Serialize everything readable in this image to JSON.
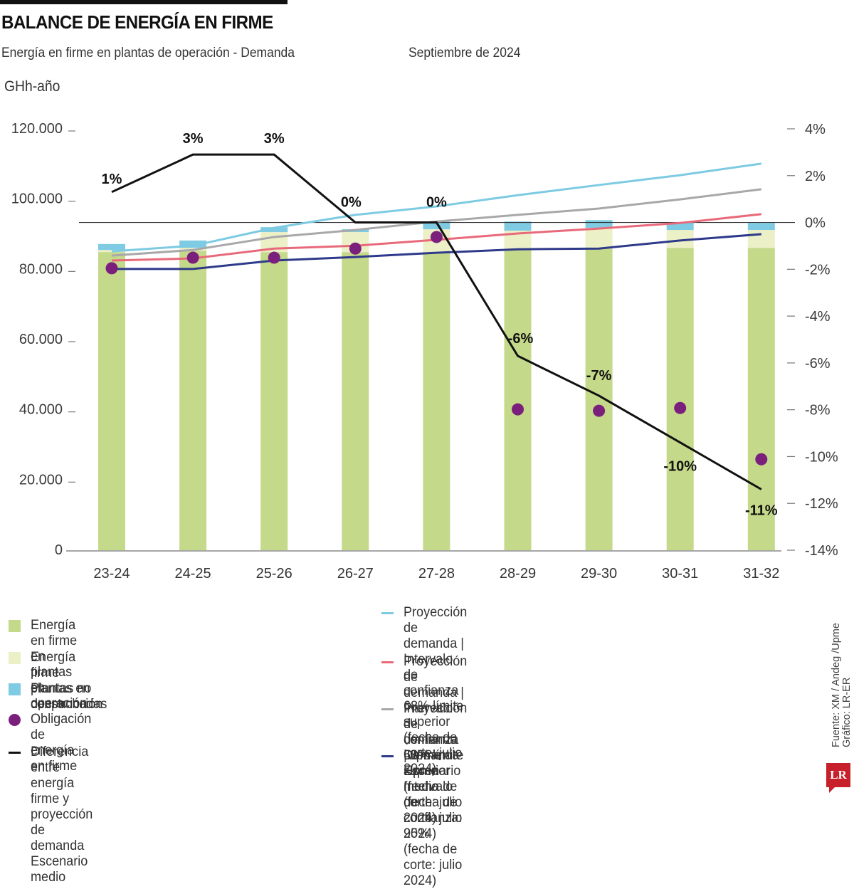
{
  "header": {
    "title": "BALANCE DE ENERGÍA EN FIRME",
    "subtitle": "Energía en firme en plantas de operación - Demanda",
    "date": "Septiembre de 2024",
    "unit": "GHh-año"
  },
  "colors": {
    "operacion": "#c5d98a",
    "construccion": "#ecf0c7",
    "no_despachadas": "#7fcbe3",
    "obligacion": "#7b1f7d",
    "diferencia": "#111111",
    "proy_68_cyan": "#7ccbe2",
    "proy_68_red": "#e8697a",
    "proy_medio": "#a8a8aa",
    "upme_95": "#2e3a8a"
  },
  "chart_data": {
    "type": "bar",
    "title": "BALANCE DE ENERGÍA EN FIRME",
    "subtitle": "Energía en firme en plantas de operación - Demanda",
    "xlabel": "",
    "ylabel": "GHh-año",
    "ylabel_right": "%",
    "ylim": [
      0,
      120000
    ],
    "ylim_right": [
      -14,
      4
    ],
    "grid": false,
    "categories": [
      "23-24",
      "24-25",
      "25-26",
      "26-27",
      "27-28",
      "28-29",
      "29-30",
      "30-31",
      "31-32"
    ],
    "yticks": [
      0,
      20000,
      40000,
      60000,
      80000,
      100000,
      120000
    ],
    "ytick_labels": [
      "0",
      "20.000",
      "40.000",
      "60.000",
      "80.000",
      "100.000",
      "120.000"
    ],
    "yticks_right": [
      4,
      2,
      0,
      -2,
      -4,
      -6,
      -8,
      -10,
      -12,
      -14
    ],
    "ytick_labels_right": [
      "4%",
      "2%",
      "0%",
      "-2%",
      "-4%",
      "-6%",
      "-8%",
      "-10%",
      "-12%",
      "-14%"
    ],
    "reference_line_right": 0,
    "stacked_bars": [
      {
        "name": "Energía en firme en plantas en operación",
        "values": [
          84900,
          85300,
          84900,
          84900,
          84900,
          85900,
          85900,
          86100,
          86100
        ]
      },
      {
        "name": "Energía firme plantas en construcción",
        "values": [
          600,
          800,
          5700,
          5700,
          6500,
          5100,
          5900,
          5100,
          5100
        ]
      },
      {
        "name": "Plantas no despachadas",
        "values": [
          1700,
          2100,
          1400,
          800,
          2200,
          2600,
          2200,
          2200,
          2000
        ]
      }
    ],
    "points": {
      "name": "Obligación de energía en firme",
      "values": [
        80300,
        83300,
        83300,
        85900,
        89200,
        40100,
        39700,
        40500,
        25900
      ]
    },
    "lines": [
      {
        "name": "Proyección de demanda | Intervalo de confianza 68% límite superior (fecha de corte: julio 2024)",
        "key": "cyan",
        "values": [
          85100,
          86700,
          91800,
          95500,
          97900,
          101100,
          104000,
          106800,
          110100
        ]
      },
      {
        "name": "Proyección de demanda |Upme Escenario medio (fecha de corte: julio 2024)",
        "key": "gray",
        "values": [
          83900,
          85500,
          89200,
          91200,
          93600,
          95500,
          97300,
          99900,
          102800
        ]
      },
      {
        "name": "Proyección de demanda | Intervalo de confianza 68% límite superior (fecha de corte: julio 2024)",
        "key": "red",
        "values": [
          82500,
          83100,
          85900,
          86700,
          88400,
          90200,
          91600,
          93200,
          95700
        ]
      },
      {
        "name": "Demanda Upme Intervalo de confianza: 95% (fecha de corte: julio 2024)",
        "key": "navy",
        "values": [
          80100,
          80100,
          82500,
          83500,
          84700,
          85700,
          85900,
          88200,
          90000
        ]
      }
    ],
    "diff_line": {
      "name": "Diferencia entre energía firme y proyección de demanda Escenario medio",
      "axis": "right",
      "values": [
        1.3,
        2.9,
        2.9,
        0.0,
        0.0,
        -5.7,
        -7.4,
        -9.4,
        -11.4
      ],
      "labels": [
        "1%",
        "3%",
        "3%",
        "0%",
        "0%",
        "-6%",
        "-7%",
        "-10%",
        "-11%"
      ]
    }
  },
  "legend": {
    "left": [
      {
        "label": "Energía en firme en plantas en operación",
        "shape": "square",
        "color_key": "operacion"
      },
      {
        "label": "Energía firme plantas en construcción",
        "shape": "square",
        "color_key": "construccion"
      },
      {
        "label": "Plantas no despachadas",
        "shape": "square",
        "color_key": "no_despachadas"
      },
      {
        "label": "Obligación de energía en firme",
        "shape": "dot",
        "color_key": "obligacion"
      },
      {
        "label": "Diferencia entre energía firme y proyección\nde demanda  Escenario medio",
        "shape": "dash",
        "color_key": "diferencia"
      }
    ],
    "right": [
      {
        "label": "Proyección de demanda | Intervalo de confianza\n68% límite superior (fecha de corte: julio 2024)",
        "shape": "dash",
        "color_key": "proy_68_cyan"
      },
      {
        "label": "Proyección de demanda | Intervalo de confianza\n68% límite superior (fecha de corte: julio 2024)",
        "shape": "dash",
        "color_key": "proy_68_red"
      },
      {
        "label": "Proyección de demanda |Upme Escenario\nmedio (fecha de corte: julio 2024)",
        "shape": "dash",
        "color_key": "proy_medio"
      },
      {
        "label": "Demanda Upme Intervalo de confianza: 95%\n(fecha de corte: julio 2024)",
        "shape": "dash",
        "color_key": "upme_95"
      }
    ]
  },
  "footer": {
    "source": "Fuente: XM / Andeg /Upme",
    "credit": "Gráfico: LR-ER",
    "logo": "LR"
  }
}
